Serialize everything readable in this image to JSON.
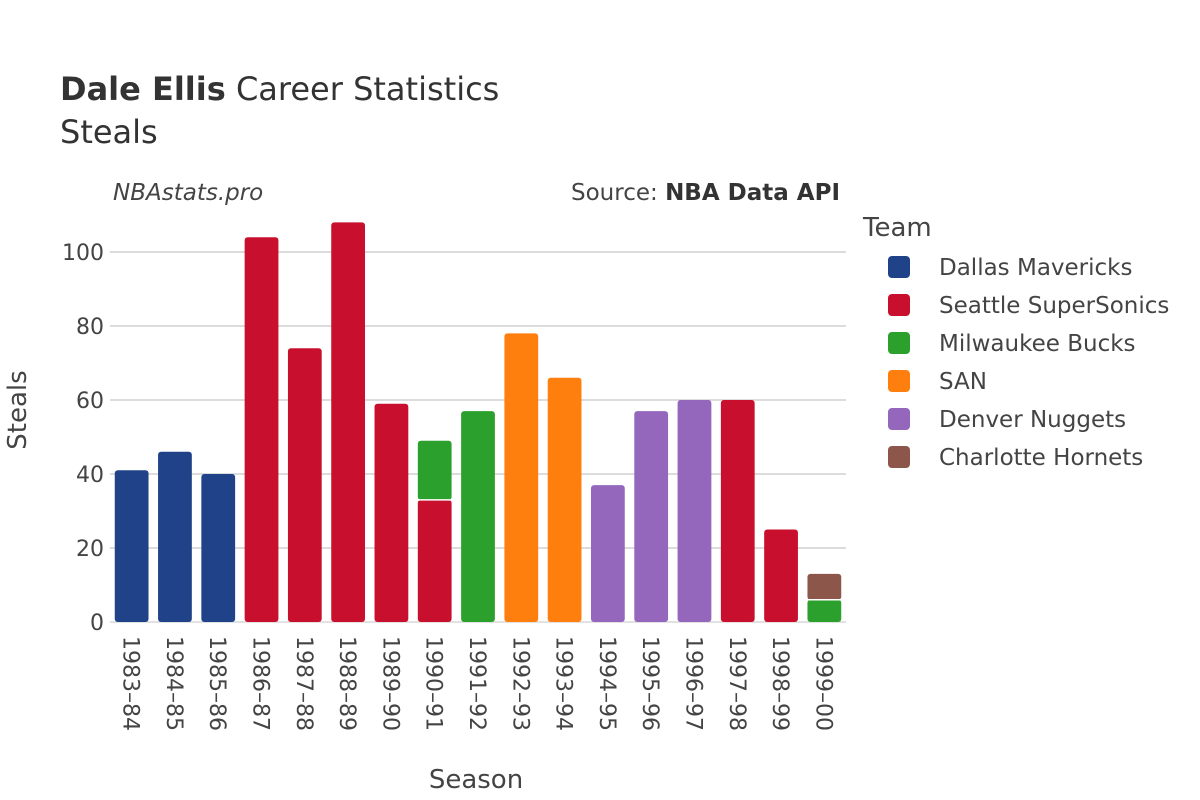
{
  "header": {
    "player_name": "Dale Ellis",
    "title_rest": " Career Statistics",
    "subtitle": "Steals",
    "watermark": "NBAstats.pro",
    "source_prefix": "Source: ",
    "source_name": "NBA Data API"
  },
  "chart_data": {
    "type": "bar",
    "stacked": true,
    "xlabel": "Season",
    "ylabel": "Steals",
    "ylim": [
      0,
      110
    ],
    "yticks": [
      0,
      20,
      40,
      60,
      80,
      100
    ],
    "grid": true,
    "legend_title": "Team",
    "legend_position": "right",
    "categories": [
      "1983–84",
      "1984–85",
      "1985–86",
      "1986–87",
      "1987–88",
      "1988–89",
      "1989–90",
      "1990–91",
      "1991–92",
      "1992–93",
      "1993–94",
      "1994–95",
      "1995–96",
      "1996–97",
      "1997–98",
      "1998–99",
      "1999–00"
    ],
    "series": [
      {
        "name": "Dallas Mavericks",
        "color": "#1f4289",
        "values": [
          41,
          46,
          40,
          0,
          0,
          0,
          0,
          0,
          0,
          0,
          0,
          0,
          0,
          0,
          0,
          0,
          0
        ]
      },
      {
        "name": "Seattle SuperSonics",
        "color": "#c8102e",
        "values": [
          0,
          0,
          0,
          104,
          74,
          108,
          59,
          33,
          0,
          0,
          0,
          0,
          0,
          0,
          60,
          25,
          0
        ]
      },
      {
        "name": "Milwaukee Bucks",
        "color": "#2ca02c",
        "values": [
          0,
          0,
          0,
          0,
          0,
          0,
          0,
          16,
          57,
          0,
          0,
          0,
          0,
          0,
          0,
          0,
          6
        ]
      },
      {
        "name": "SAN",
        "color": "#ff7f0e",
        "values": [
          0,
          0,
          0,
          0,
          0,
          0,
          0,
          0,
          0,
          78,
          66,
          0,
          0,
          0,
          0,
          0,
          0
        ]
      },
      {
        "name": "Denver Nuggets",
        "color": "#9467bd",
        "values": [
          0,
          0,
          0,
          0,
          0,
          0,
          0,
          0,
          0,
          0,
          0,
          37,
          57,
          60,
          0,
          0,
          0
        ]
      },
      {
        "name": "Charlotte Hornets",
        "color": "#8c564b",
        "values": [
          0,
          0,
          0,
          0,
          0,
          0,
          0,
          0,
          0,
          0,
          0,
          0,
          0,
          0,
          0,
          0,
          7
        ]
      }
    ]
  }
}
